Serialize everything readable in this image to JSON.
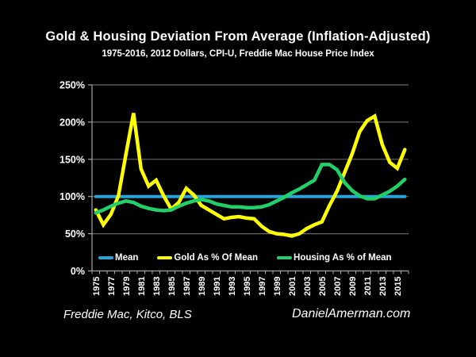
{
  "chart_data": {
    "type": "line",
    "title": "Gold & Housing Deviation From Average (Inflation-Adjusted)",
    "subtitle": "1975-2016, 2012 Dollars, CPI-U, Freddie Mac House Price Index",
    "xlabel": "",
    "ylabel": "",
    "ylim": [
      0,
      250
    ],
    "ytick_labels": [
      "0%",
      "50%",
      "100%",
      "150%",
      "200%",
      "250%"
    ],
    "grid": "horizontal",
    "legend_position": "bottom-inside-plot",
    "x": [
      1975,
      1976,
      1977,
      1978,
      1979,
      1980,
      1981,
      1982,
      1983,
      1984,
      1985,
      1986,
      1987,
      1988,
      1989,
      1990,
      1991,
      1992,
      1993,
      1994,
      1995,
      1996,
      1997,
      1998,
      1999,
      2000,
      2001,
      2002,
      2003,
      2004,
      2005,
      2006,
      2007,
      2008,
      2009,
      2010,
      2011,
      2012,
      2013,
      2014,
      2015,
      2016
    ],
    "xtick_labels": [
      "1975",
      "1977",
      "1979",
      "1981",
      "1983",
      "1985",
      "1987",
      "1989",
      "1991",
      "1993",
      "1995",
      "1997",
      "1999",
      "2001",
      "2003",
      "2005",
      "2007",
      "2009",
      "2011",
      "2013",
      "2015"
    ],
    "series": [
      {
        "name": "Mean",
        "color": "#28A3DC",
        "width": 4,
        "values": [
          100,
          100,
          100,
          100,
          100,
          100,
          100,
          100,
          100,
          100,
          100,
          100,
          100,
          100,
          100,
          100,
          100,
          100,
          100,
          100,
          100,
          100,
          100,
          100,
          100,
          100,
          100,
          100,
          100,
          100,
          100,
          100,
          100,
          100,
          100,
          100,
          100,
          100,
          100,
          100,
          100,
          100
        ]
      },
      {
        "name": "Gold As % Of Mean",
        "color": "#FFFF00",
        "width": 4.5,
        "values": [
          82,
          62,
          76,
          101,
          157,
          212,
          137,
          114,
          122,
          101,
          83,
          92,
          111,
          102,
          88,
          82,
          76,
          70,
          72,
          73,
          71,
          70,
          60,
          53,
          50,
          49,
          47,
          50,
          57,
          62,
          66,
          88,
          107,
          132,
          157,
          187,
          202,
          208,
          170,
          146,
          138,
          163
        ]
      },
      {
        "name": "Housing As % of Mean",
        "color": "#21D069",
        "width": 4.5,
        "values": [
          78,
          82,
          87,
          91,
          94,
          92,
          87,
          84,
          82,
          81,
          82,
          87,
          91,
          94,
          96,
          94,
          90,
          88,
          86,
          86,
          85,
          85,
          86,
          89,
          94,
          99,
          105,
          110,
          116,
          122,
          143,
          143,
          136,
          119,
          108,
          101,
          97,
          97,
          102,
          107,
          114,
          123
        ]
      }
    ]
  },
  "footer": {
    "source": "Freddie Mac, Kitco, BLS",
    "website": "DanielAmerman.com"
  },
  "colors": {
    "background": "#000000",
    "text": "#FFFFFF",
    "gridline": "#666666",
    "axis": "#A6A6A6",
    "mean_line": "#28A3DC",
    "gold_line": "#FFFF00",
    "housing_line": "#21D069"
  }
}
